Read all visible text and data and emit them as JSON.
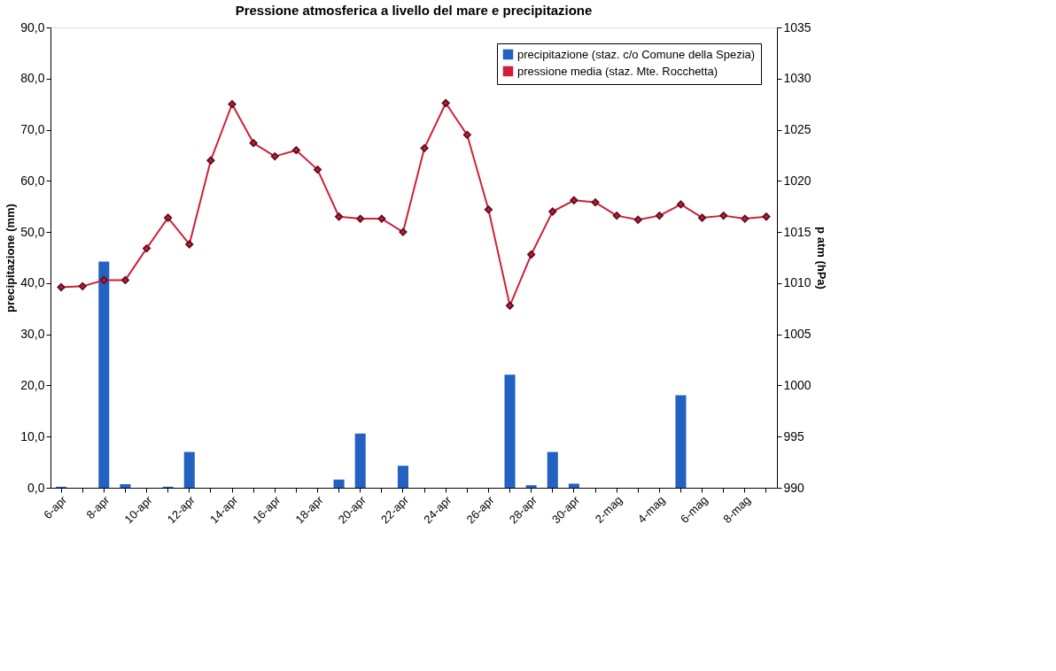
{
  "chart_data": {
    "type": "bar",
    "title": "Pressione atmosferica a livello del mare e precipitazione",
    "ylabel": "precipitazione (mm)",
    "y2label": "p atm (hPa)",
    "categories": [
      "6-apr",
      null,
      "8-apr",
      null,
      "10-apr",
      null,
      "12-apr",
      null,
      "14-apr",
      null,
      "16-apr",
      null,
      "18-apr",
      null,
      "20-apr",
      null,
      "22-apr",
      null,
      "24-apr",
      null,
      "26-apr",
      null,
      "28-apr",
      null,
      "30-apr",
      null,
      "2-mag",
      null,
      "4-mag",
      null,
      "6-mag",
      null,
      "8-mag",
      null
    ],
    "series": [
      {
        "name": "precipitazione (staz. c/o Comune della Spezia)",
        "color": "#2361c2",
        "values": [
          0.2,
          0,
          44.2,
          0.7,
          0,
          0.2,
          7.0,
          0,
          0,
          0,
          0,
          0,
          0,
          1.6,
          10.6,
          0,
          4.3,
          0,
          0,
          0,
          0,
          22.1,
          0.5,
          7.0,
          0.8,
          0,
          0,
          0,
          0,
          18.1,
          0,
          0,
          0,
          0
        ]
      },
      {
        "name": "pressione media (staz. Mte. Rocchetta)",
        "type": "line",
        "axis": "y2",
        "color": "#d0203a",
        "values": [
          1009.6,
          1009.7,
          1010.3,
          1010.3,
          1013.4,
          1016.4,
          1013.8,
          1022.0,
          1027.5,
          1023.7,
          1022.4,
          1023.0,
          1021.1,
          1016.5,
          1016.3,
          1016.3,
          1015.0,
          1023.2,
          1027.6,
          1024.5,
          1017.2,
          1007.8,
          1012.8,
          1017.0,
          1018.1,
          1017.9,
          1016.6,
          1016.2,
          1016.6,
          1017.7,
          1016.4,
          1016.6,
          1016.3,
          1016.5
        ]
      }
    ],
    "ylim": [
      0,
      90
    ],
    "yticks": [
      {
        "value": 0,
        "label": "0,0"
      },
      {
        "value": 10,
        "label": "10,0"
      },
      {
        "value": 20,
        "label": "20,0"
      },
      {
        "value": 30,
        "label": "30,0"
      },
      {
        "value": 40,
        "label": "40,0"
      },
      {
        "value": 50,
        "label": "50,0"
      },
      {
        "value": 60,
        "label": "60,0"
      },
      {
        "value": 70,
        "label": "70,0"
      },
      {
        "value": 80,
        "label": "80,0"
      },
      {
        "value": 90,
        "label": "90,0"
      }
    ],
    "y2lim": [
      990,
      1035
    ],
    "y2ticks": [
      990,
      995,
      1000,
      1005,
      1010,
      1015,
      1020,
      1025,
      1030,
      1035
    ],
    "legend": "top right",
    "grid": false,
    "marker": "diamond",
    "line_style": "solid"
  }
}
